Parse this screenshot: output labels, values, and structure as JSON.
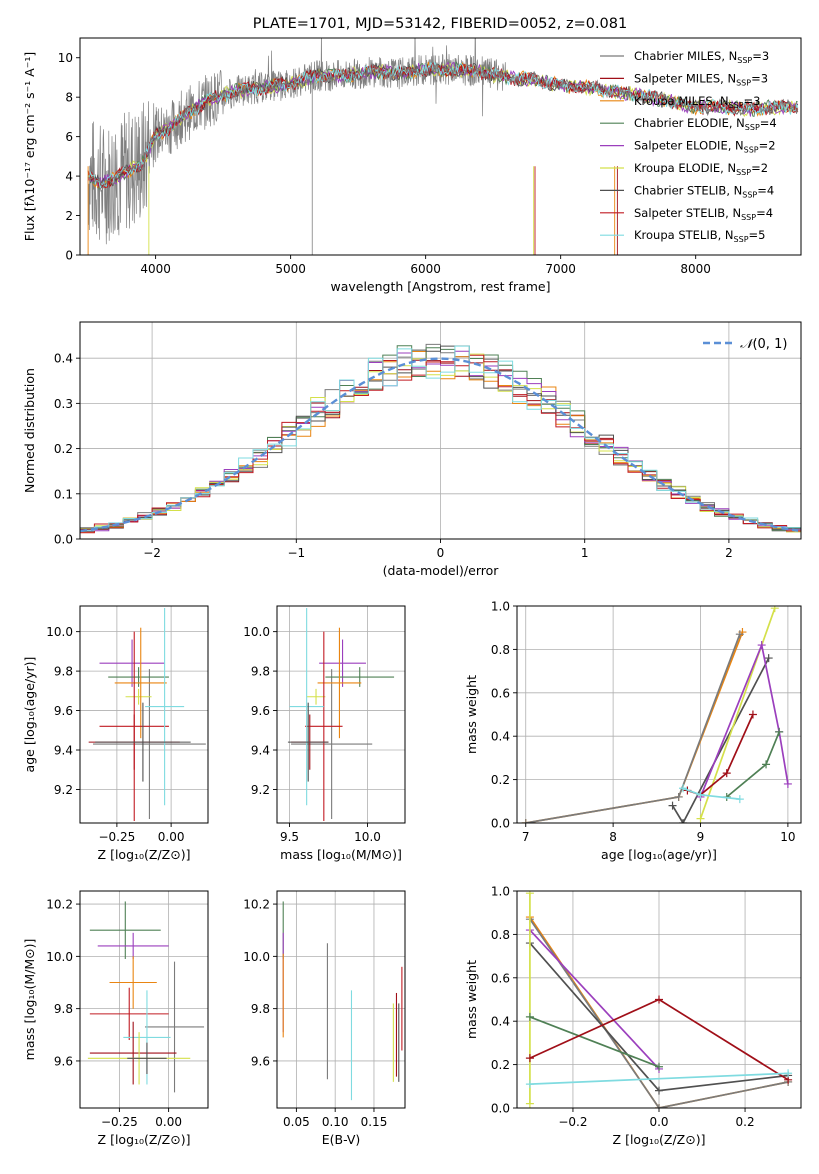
{
  "colors": [
    "#7b7b7b",
    "#a00f18",
    "#e98512",
    "#4f8055",
    "#9b3fbd",
    "#d4e04a",
    "#505050",
    "#c11b23",
    "#7fdbe0"
  ],
  "grid_color": "#b0b0b0",
  "chart_data": [
    {
      "id": "spectrum",
      "type": "line",
      "title": "PLATE=1701, MJD=53142, FIBERID=0052, z=0.081",
      "xlabel": "wavelength [Angstrom, rest frame]",
      "ylabel": "Flux [fλ10⁻¹⁷ erg cm⁻² s⁻¹ A⁻¹]",
      "xlim": [
        3440,
        8780
      ],
      "ylim": [
        0,
        11
      ],
      "xticks": [
        4000,
        5000,
        6000,
        7000,
        8000
      ],
      "yticks": [
        0,
        2,
        4,
        6,
        8,
        10
      ],
      "grid": false,
      "legend_position": "right",
      "continuum_x": [
        3500,
        3600,
        3700,
        3800,
        3900,
        4000,
        4100,
        4200,
        4400,
        4600,
        4800,
        5000,
        5200,
        5400,
        5600,
        5800,
        6000,
        6200,
        6400,
        6600,
        6800,
        7000,
        7200,
        7400,
        7600,
        7800,
        8000,
        8200,
        8400,
        8600
      ],
      "continuum_y": [
        4.0,
        3.6,
        3.9,
        4.3,
        4.6,
        6.1,
        6.4,
        7.0,
        7.9,
        8.3,
        8.5,
        8.7,
        9.1,
        9.1,
        9.3,
        9.2,
        9.4,
        9.4,
        9.3,
        9.0,
        8.9,
        8.6,
        8.5,
        8.3,
        8.1,
        7.8,
        7.5,
        7.5,
        7.4,
        7.5
      ],
      "series": [
        {
          "name": "Chabrier MILES, N$_{SSP}$=3",
          "n_ssp": "3",
          "label": "Chabrier MILES, N",
          "sub": "SSP",
          "tail": "=3"
        },
        {
          "name": "Salpeter MILES",
          "label": "Salpeter MILES, N",
          "sub": "SSP",
          "tail": "=3"
        },
        {
          "name": "Kroupa MILES",
          "label": "Kroupa MILES, N",
          "sub": "SSP",
          "tail": "=3"
        },
        {
          "name": "Chabrier ELODIE",
          "label": "Chabrier ELODIE, N",
          "sub": "SSP",
          "tail": "=4"
        },
        {
          "name": "Salpeter ELODIE",
          "label": "Salpeter ELODIE, N",
          "sub": "SSP",
          "tail": "=2"
        },
        {
          "name": "Kroupa ELODIE",
          "label": "Kroupa ELODIE, N",
          "sub": "SSP",
          "tail": "=2"
        },
        {
          "name": "Chabrier STELIB",
          "label": "Chabrier STELIB, N",
          "sub": "SSP",
          "tail": "=4"
        },
        {
          "name": "Salpeter STELIB",
          "label": "Salpeter STELIB, N",
          "sub": "SSP",
          "tail": "=4"
        },
        {
          "name": "Kroupa STELIB",
          "label": "Kroupa STELIB, N",
          "sub": "SSP",
          "tail": "=5"
        }
      ]
    },
    {
      "id": "residuals",
      "type": "line",
      "xlabel": "(data-model)/error",
      "ylabel": "Normed distribution",
      "xlim": [
        -2.5,
        2.5
      ],
      "ylim": [
        0,
        0.48
      ],
      "xticks": [
        -2,
        -1,
        0,
        1,
        2
      ],
      "xticklabels": [
        "−2",
        "−1",
        "0",
        "1",
        "2"
      ],
      "yticks": [
        0.0,
        0.1,
        0.2,
        0.3,
        0.4
      ],
      "yticklabels": [
        "0.0",
        "0.1",
        "0.2",
        "0.3",
        "0.4"
      ],
      "grid": true,
      "legend_position": "top-right",
      "reference_curve": {
        "name": "𝒩(0, 1)",
        "label": "(0, 1)",
        "symbol": "𝒩"
      },
      "bin_width": 0.1
    },
    {
      "id": "age_vs_Z",
      "type": "scatter",
      "xlabel": "Z [log₁₀(Z/Z⊙)]",
      "ylabel": "age  [log₁₀(age/yr)]",
      "xlim": [
        -0.42,
        0.17
      ],
      "ylim": [
        9.03,
        10.13
      ],
      "xticks": [
        -0.25,
        0.0
      ],
      "xticklabels": [
        "−0.25",
        "0.00"
      ],
      "yticks": [
        9.2,
        9.4,
        9.6,
        9.8,
        10.0
      ],
      "yticklabels": [
        "9.2",
        "9.4",
        "9.6",
        "9.8",
        "10.0"
      ],
      "grid": true,
      "points": [
        {
          "x": -0.1,
          "y": 9.43,
          "xerr": 0.26,
          "yerr": 0.38,
          "c": 1
        },
        {
          "x": -0.15,
          "y": 9.67,
          "xerr": 0.06,
          "yerr": 0.04,
          "c": 6
        },
        {
          "x": -0.18,
          "y": 9.84,
          "xerr": 0.15,
          "yerr": 0.12,
          "c": 5
        },
        {
          "x": -0.15,
          "y": 9.77,
          "xerr": 0.14,
          "yerr": 0.05,
          "c": 4
        },
        {
          "x": -0.17,
          "y": 9.44,
          "xerr": 0.21,
          "yerr": 0.14,
          "c": 2
        },
        {
          "x": -0.14,
          "y": 9.74,
          "xerr": 0.12,
          "yerr": 0.28,
          "c": 3
        },
        {
          "x": -0.17,
          "y": 9.52,
          "xerr": 0.16,
          "yerr": 0.48,
          "c": 8
        },
        {
          "x": -0.03,
          "y": 9.62,
          "xerr": 0.09,
          "yerr": 0.5,
          "c": 9
        },
        {
          "x": -0.13,
          "y": 9.44,
          "xerr": 0.22,
          "yerr": 0.2,
          "c": 7
        }
      ]
    },
    {
      "id": "age_vs_mass",
      "type": "scatter",
      "xlabel": "mass [log₁₀(M/M⊙)]",
      "ylabel": "",
      "xlim": [
        9.42,
        10.24
      ],
      "ylim": [
        9.03,
        10.13
      ],
      "xticks": [
        9.5,
        10.0
      ],
      "xticklabels": [
        "9.5",
        "10.0"
      ],
      "yticks": [
        9.2,
        9.4,
        9.6,
        9.8,
        10.0
      ],
      "yticklabels": [
        "9.2",
        "9.4",
        "9.6",
        "9.8",
        "10.0"
      ],
      "grid": true,
      "points": [
        {
          "x": 9.77,
          "y": 9.43,
          "xerr": 0.26,
          "yerr": 0.38,
          "c": 1
        },
        {
          "x": 9.67,
          "y": 9.67,
          "xerr": 0.06,
          "yerr": 0.04,
          "c": 6
        },
        {
          "x": 9.84,
          "y": 9.84,
          "xerr": 0.15,
          "yerr": 0.12,
          "c": 5
        },
        {
          "x": 9.95,
          "y": 9.77,
          "xerr": 0.22,
          "yerr": 0.05,
          "c": 4
        },
        {
          "x": 9.63,
          "y": 9.44,
          "xerr": 0.12,
          "yerr": 0.14,
          "c": 2
        },
        {
          "x": 9.82,
          "y": 9.74,
          "xerr": 0.14,
          "yerr": 0.28,
          "c": 3
        },
        {
          "x": 9.72,
          "y": 9.52,
          "xerr": 0.12,
          "yerr": 0.48,
          "c": 8
        },
        {
          "x": 9.61,
          "y": 9.62,
          "xerr": 0.11,
          "yerr": 0.5,
          "c": 9
        },
        {
          "x": 9.62,
          "y": 9.44,
          "xerr": 0.13,
          "yerr": 0.2,
          "c": 7
        }
      ]
    },
    {
      "id": "mass_weight_vs_age",
      "type": "line",
      "xlabel": "age  [log₁₀(age/yr)]",
      "ylabel": "mass weight",
      "xlim": [
        6.9,
        10.15
      ],
      "ylim": [
        0,
        1
      ],
      "xticks": [
        7,
        8,
        9,
        10
      ],
      "yticks": [
        0.0,
        0.2,
        0.4,
        0.6,
        0.8,
        1.0
      ],
      "yticklabels": [
        "0.0",
        "0.2",
        "0.4",
        "0.6",
        "0.8",
        "1.0"
      ],
      "grid": true,
      "series": [
        {
          "c": 2,
          "x": [
            7.0,
            8.75,
            9.48
          ],
          "y": [
            0.0,
            0.12,
            0.88
          ]
        },
        {
          "c": 0,
          "x": [
            7.0,
            8.75,
            9.45
          ],
          "y": [
            0.0,
            0.12,
            0.87
          ]
        },
        {
          "c": 6,
          "x": [
            8.68,
            8.8,
            9.78
          ],
          "y": [
            0.08,
            0.0,
            0.76
          ]
        },
        {
          "c": 5,
          "x": [
            9.0,
            9.85
          ],
          "y": [
            0.02,
            0.99
          ]
        },
        {
          "c": 4,
          "x": [
            9.0,
            9.7,
            9.9,
            10.0
          ],
          "y": [
            0.12,
            0.82,
            0.42,
            0.18
          ]
        },
        {
          "c": 3,
          "x": [
            9.3,
            9.75,
            9.9
          ],
          "y": [
            0.12,
            0.27,
            0.42
          ]
        },
        {
          "c": 1,
          "x": [
            8.85,
            9.0,
            9.3,
            9.6
          ],
          "y": [
            0.15,
            0.13,
            0.23,
            0.5
          ]
        },
        {
          "c": 8,
          "x": [
            8.8,
            9.0,
            9.45
          ],
          "y": [
            0.16,
            0.13,
            0.11
          ]
        },
        {
          "c": 9,
          "x": [
            9.0,
            9.3,
            9.8
          ],
          "y": [
            0.02,
            0.12,
            0.65
          ]
        }
      ]
    },
    {
      "id": "mass_vs_Z",
      "type": "scatter",
      "xlabel": "Z [log₁₀(Z/Z⊙)]",
      "ylabel": "mass [log₁₀(M/M⊙)]",
      "xlim": [
        -0.45,
        0.2
      ],
      "ylim": [
        9.42,
        10.25
      ],
      "xticks": [
        -0.25,
        0.0
      ],
      "xticklabels": [
        "−0.25",
        "0.00"
      ],
      "yticks": [
        9.6,
        9.8,
        10.0,
        10.2
      ],
      "yticklabels": [
        "9.6",
        "9.8",
        "10.0",
        "10.2"
      ],
      "grid": true,
      "points": [
        {
          "x": -0.22,
          "y": 10.1,
          "xerr": 0.18,
          "yerr": 0.11,
          "c": 4
        },
        {
          "x": -0.18,
          "y": 10.04,
          "xerr": 0.18,
          "yerr": 0.05,
          "c": 5
        },
        {
          "x": -0.18,
          "y": 9.9,
          "xerr": 0.12,
          "yerr": 0.1,
          "c": 3
        },
        {
          "x": -0.2,
          "y": 9.78,
          "xerr": 0.2,
          "yerr": 0.1,
          "c": 8
        },
        {
          "x": 0.03,
          "y": 9.73,
          "xerr": 0.15,
          "yerr": 0.25,
          "c": 1
        },
        {
          "x": -0.11,
          "y": 9.69,
          "xerr": 0.12,
          "yerr": 0.18,
          "c": 9
        },
        {
          "x": -0.18,
          "y": 9.63,
          "xerr": 0.22,
          "yerr": 0.12,
          "c": 2
        },
        {
          "x": -0.15,
          "y": 9.61,
          "xerr": 0.26,
          "yerr": 0.1,
          "c": 6
        },
        {
          "x": -0.11,
          "y": 9.61,
          "xerr": 0.1,
          "yerr": 0.06,
          "c": 7
        }
      ]
    },
    {
      "id": "mass_vs_ebv",
      "type": "scatter",
      "xlabel": "E(B-V)",
      "ylabel": "",
      "xlim": [
        0.025,
        0.19
      ],
      "ylim": [
        9.42,
        10.25
      ],
      "xticks": [
        0.05,
        0.1,
        0.15
      ],
      "xticklabels": [
        "0.05",
        "0.10",
        "0.15"
      ],
      "yticks": [
        9.6,
        9.8,
        10.0,
        10.2
      ],
      "yticklabels": [
        "9.6",
        "9.8",
        "10.0",
        "10.2"
      ],
      "grid": true,
      "points": [
        {
          "x": 0.033,
          "y": 10.1,
          "yerr": 0.11,
          "c": 4
        },
        {
          "x": 0.033,
          "y": 9.9,
          "yerr": 0.19,
          "c": 5
        },
        {
          "x": 0.033,
          "y": 9.85,
          "yerr": 0.16,
          "c": 3
        },
        {
          "x": 0.09,
          "y": 9.79,
          "yerr": 0.26,
          "c": 1
        },
        {
          "x": 0.121,
          "y": 9.66,
          "yerr": 0.21,
          "c": 9
        },
        {
          "x": 0.175,
          "y": 9.67,
          "yerr": 0.15,
          "c": 6
        },
        {
          "x": 0.179,
          "y": 9.7,
          "yerr": 0.16,
          "c": 2
        },
        {
          "x": 0.182,
          "y": 9.67,
          "yerr": 0.15,
          "c": 7
        },
        {
          "x": 0.186,
          "y": 9.8,
          "yerr": 0.16,
          "c": 8
        }
      ]
    },
    {
      "id": "mass_weight_vs_Z",
      "type": "line",
      "xlabel": "Z [log₁₀(Z/Z⊙)]",
      "ylabel": "mass weight",
      "xlim": [
        -0.33,
        0.33
      ],
      "ylim": [
        0,
        1
      ],
      "xticks": [
        -0.2,
        0.0,
        0.2
      ],
      "xticklabels": [
        "−0.2",
        "0.0",
        "0.2"
      ],
      "yticks": [
        0.0,
        0.2,
        0.4,
        0.6,
        0.8,
        1.0
      ],
      "yticklabels": [
        "0.0",
        "0.2",
        "0.4",
        "0.6",
        "0.8",
        "1.0"
      ],
      "grid": true,
      "series": [
        {
          "c": 2,
          "x": [
            -0.3,
            0.0,
            0.3
          ],
          "y": [
            0.88,
            0.0,
            0.12
          ]
        },
        {
          "c": 0,
          "x": [
            -0.3,
            0.0,
            0.3
          ],
          "y": [
            0.87,
            0.0,
            0.12
          ]
        },
        {
          "c": 4,
          "x": [
            -0.3,
            0.0
          ],
          "y": [
            0.82,
            0.18
          ]
        },
        {
          "c": 6,
          "x": [
            -0.3,
            0.0,
            0.3
          ],
          "y": [
            0.76,
            0.08,
            0.15
          ]
        },
        {
          "c": 5,
          "x": [
            -0.3,
            -0.3
          ],
          "y": [
            0.99,
            0.02
          ]
        },
        {
          "c": 3,
          "x": [
            -0.3,
            0.0
          ],
          "y": [
            0.42,
            0.19
          ]
        },
        {
          "c": 1,
          "x": [
            -0.3,
            0.0,
            0.3
          ],
          "y": [
            0.23,
            0.5,
            0.13
          ]
        },
        {
          "c": 8,
          "x": [
            -0.3,
            0.3
          ],
          "y": [
            0.11,
            0.16
          ]
        },
        {
          "c": 9,
          "x": [
            -0.3,
            0.0,
            0.0,
            0.3
          ],
          "y": [
            0.03,
            0.12,
            0.02,
            0.15
          ]
        }
      ]
    }
  ]
}
